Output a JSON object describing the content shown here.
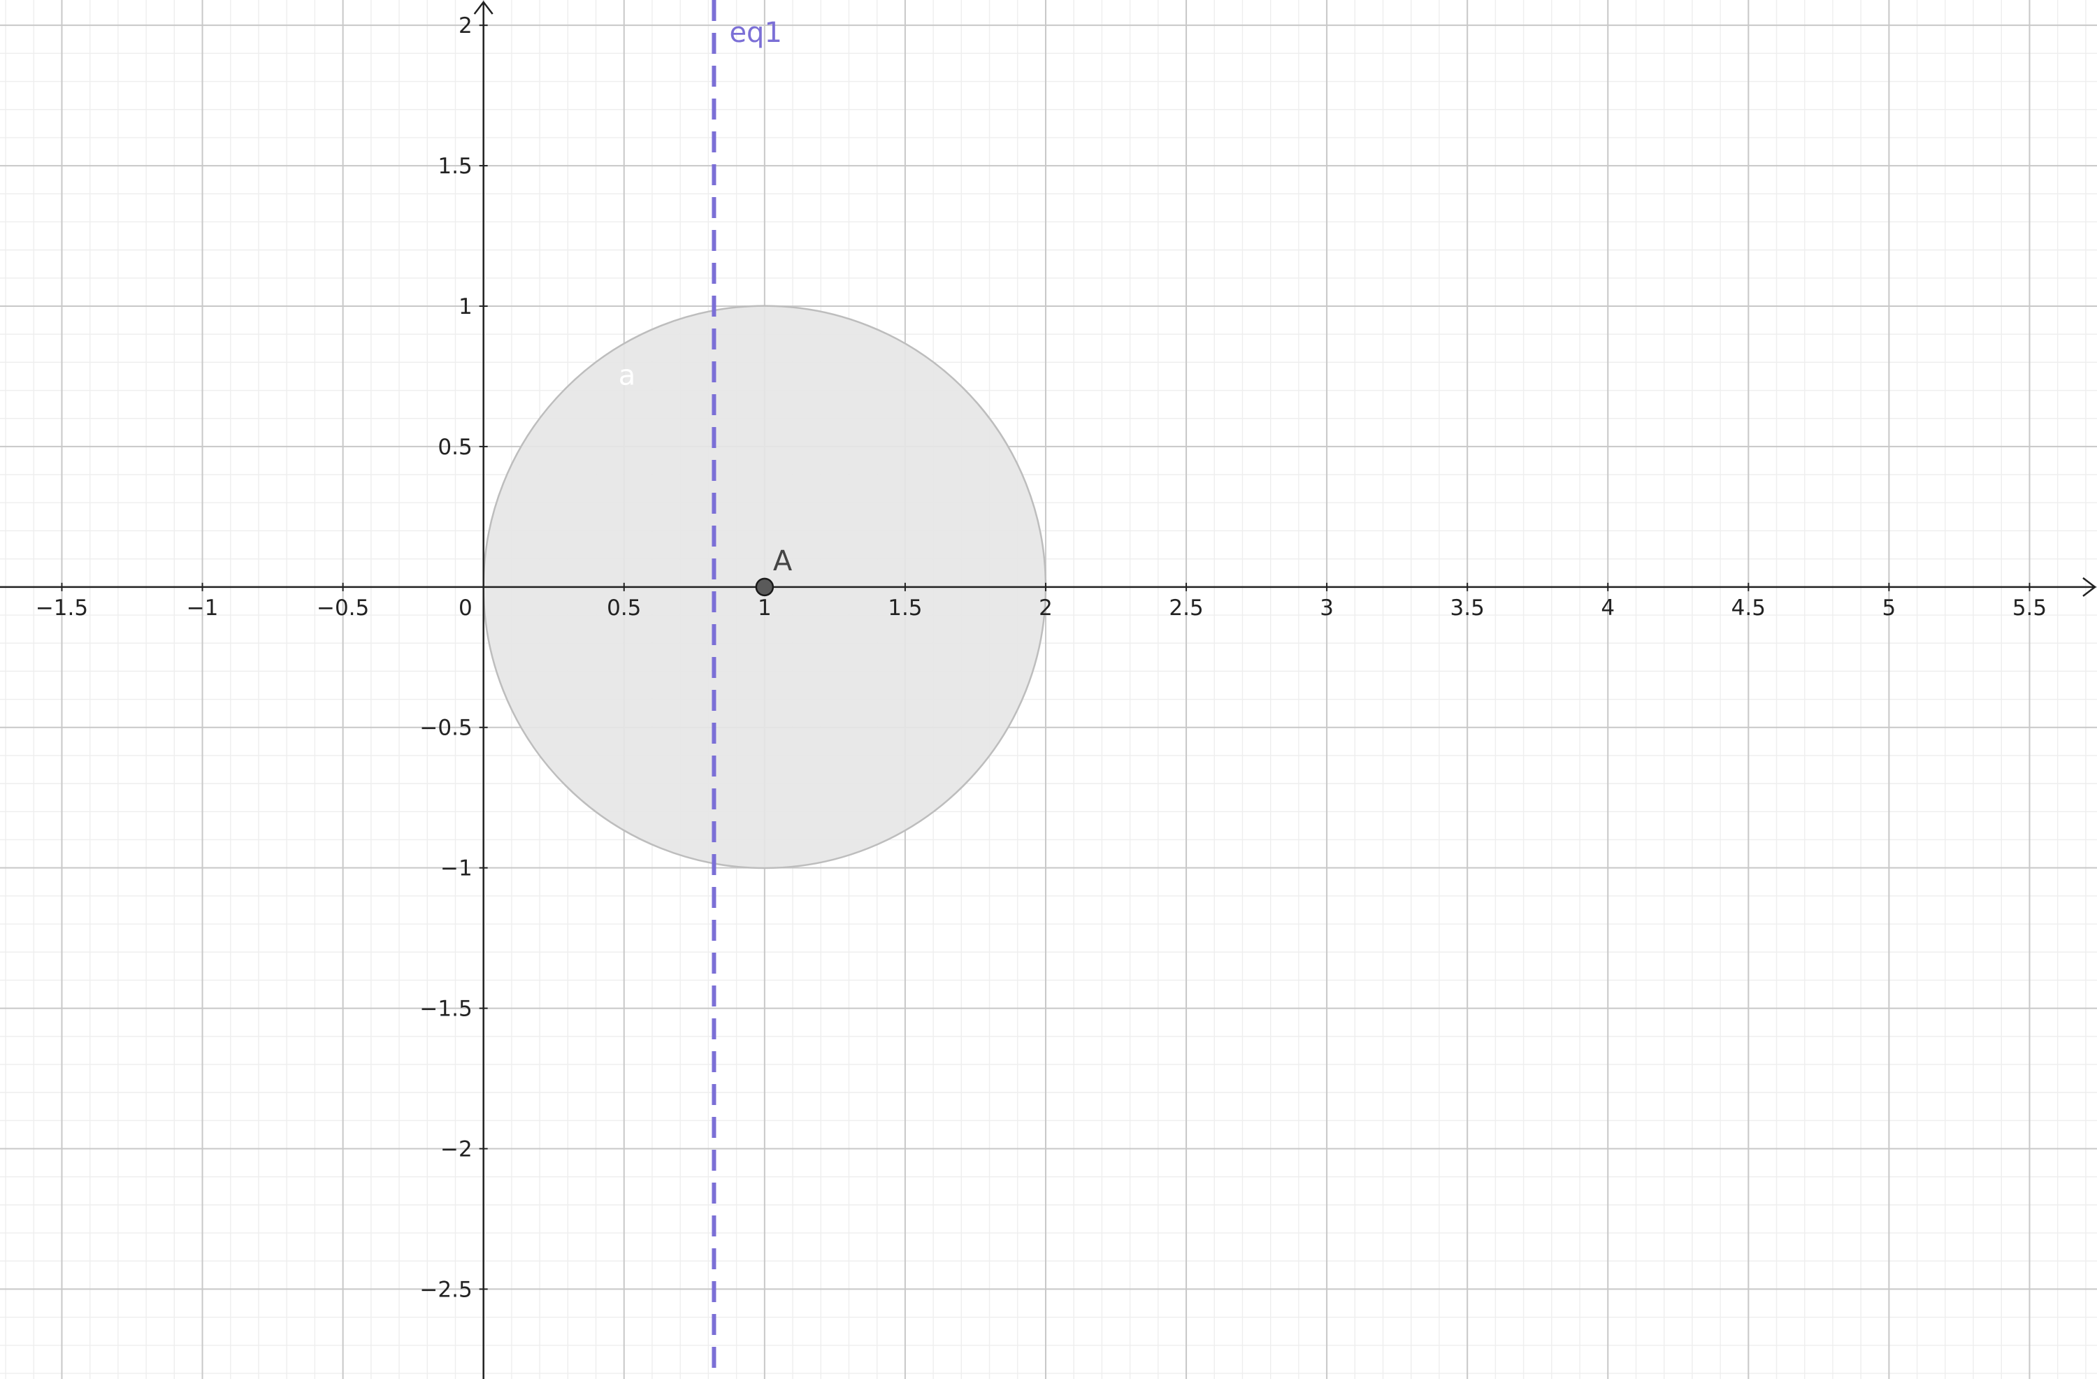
{
  "view": {
    "x_range": [
      -1.72,
      5.74
    ],
    "y_range": [
      -2.82,
      2.09
    ],
    "major_step": 0.5,
    "minor_divisions": 5,
    "grid": true
  },
  "axes": {
    "x_ticks": [
      {
        "value": -1.5,
        "label": "−1.5"
      },
      {
        "value": -1,
        "label": "−1"
      },
      {
        "value": -0.5,
        "label": "−0.5"
      },
      {
        "value": 0.5,
        "label": "0.5"
      },
      {
        "value": 1,
        "label": "1"
      },
      {
        "value": 1.5,
        "label": "1.5"
      },
      {
        "value": 2,
        "label": "2"
      },
      {
        "value": 2.5,
        "label": "2.5"
      },
      {
        "value": 3,
        "label": "3"
      },
      {
        "value": 3.5,
        "label": "3.5"
      },
      {
        "value": 4,
        "label": "4"
      },
      {
        "value": 4.5,
        "label": "4.5"
      },
      {
        "value": 5,
        "label": "5"
      },
      {
        "value": 5.5,
        "label": "5.5"
      }
    ],
    "y_ticks": [
      {
        "value": 2,
        "label": "2"
      },
      {
        "value": 1.5,
        "label": "1.5"
      },
      {
        "value": 1,
        "label": "1"
      },
      {
        "value": 0.5,
        "label": "0.5"
      },
      {
        "value": -0.5,
        "label": "−0.5"
      },
      {
        "value": -1,
        "label": "−1"
      },
      {
        "value": -1.5,
        "label": "−1.5"
      },
      {
        "value": -2,
        "label": "−2"
      },
      {
        "value": -2.5,
        "label": "−2.5"
      }
    ],
    "origin_label": "0"
  },
  "objects": {
    "circle": {
      "label": "a",
      "center": [
        1,
        0
      ],
      "radius": 1,
      "fill_color": "#e6e6e6",
      "stroke_color": "#bdbdbd",
      "label_color": "#ffffff"
    },
    "point": {
      "label": "A",
      "coords": [
        1,
        0
      ],
      "fill_color": "#5a5a5a",
      "label_color": "#444444"
    },
    "line": {
      "label": "eq1",
      "x": 0.82,
      "style": "dashed",
      "color": "#7b6fd6"
    }
  },
  "colors": {
    "minor_grid": "#eeeeee",
    "major_grid": "#c8c8c8",
    "axis": "#222222"
  }
}
